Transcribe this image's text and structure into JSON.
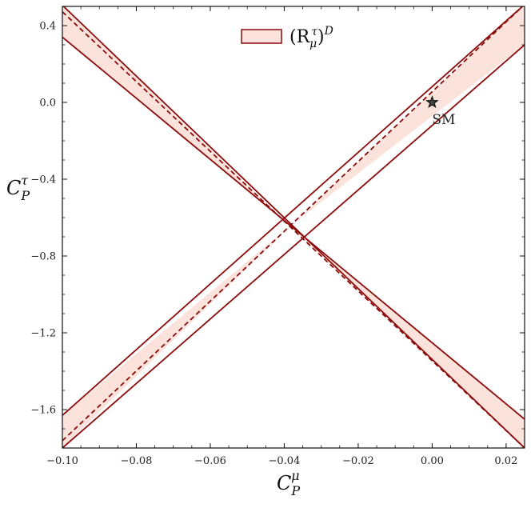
{
  "chart_data": {
    "type": "line",
    "title": "",
    "xlabel": {
      "base": "C",
      "sub": "P",
      "sup": "μ"
    },
    "ylabel": {
      "base": "C",
      "sub": "P",
      "sup": "τ"
    },
    "xlim": [
      -0.1,
      0.025
    ],
    "ylim": [
      -1.8,
      0.5
    ],
    "x_ticks": [
      -0.1,
      -0.08,
      -0.06,
      -0.04,
      -0.02,
      0.0,
      0.02
    ],
    "x_tick_labels": [
      "−0.10",
      "−0.08",
      "−0.06",
      "−0.04",
      "−0.02",
      "0.00",
      "0.02"
    ],
    "y_ticks": [
      0.4,
      0.0,
      -0.4,
      -0.8,
      -1.2,
      -1.6
    ],
    "y_tick_labels": [
      "0.4",
      "0.0",
      "−0.4",
      "−0.8",
      "−1.2",
      "−1.6"
    ],
    "grid": false,
    "legend": {
      "placement": "top-center",
      "entries": [
        {
          "label": "(R_μ^τ)^D",
          "base": "(R",
          "sub": "μ",
          "sup": "τ",
          "close": ")",
          "outer_sup": "D"
        }
      ]
    },
    "colors": {
      "band_fill": "#fbe3dc",
      "band_edge": "#8b0a0a",
      "marker": "#111111"
    },
    "center": {
      "x": -0.0385,
      "y": -0.645
    },
    "series": [
      {
        "role": "central-line",
        "style": "dashed",
        "points": [
          [
            -0.1,
            0.472
          ],
          [
            0.025,
            -1.8
          ]
        ]
      },
      {
        "role": "central-line",
        "style": "dashed",
        "points": [
          [
            -0.1,
            -1.762
          ],
          [
            0.025,
            0.51
          ]
        ]
      },
      {
        "role": "band-edge",
        "style": "solid",
        "points": [
          [
            -0.1,
            0.506
          ],
          [
            0.025,
            -1.8
          ]
        ]
      },
      {
        "role": "band-edge",
        "style": "solid",
        "points": [
          [
            -0.1,
            0.34
          ],
          [
            0.025,
            -1.65
          ]
        ]
      },
      {
        "role": "band-edge",
        "style": "solid",
        "points": [
          [
            -0.1,
            -1.63
          ],
          [
            0.025,
            0.51
          ]
        ]
      },
      {
        "role": "band-edge",
        "style": "solid",
        "points": [
          [
            -0.1,
            -1.8
          ],
          [
            0.025,
            0.3
          ]
        ]
      }
    ],
    "bands": [
      {
        "polygon": [
          [
            -0.1,
            0.506
          ],
          [
            -0.1,
            0.34
          ],
          [
            -0.0385,
            -0.645
          ]
        ]
      },
      {
        "polygon": [
          [
            0.025,
            -1.65
          ],
          [
            0.025,
            -1.8
          ],
          [
            -0.0385,
            -0.645
          ]
        ]
      },
      {
        "polygon": [
          [
            -0.1,
            -1.63
          ],
          [
            -0.1,
            -1.8
          ],
          [
            -0.0385,
            -0.645
          ]
        ]
      },
      {
        "polygon": [
          [
            0.025,
            0.51
          ],
          [
            0.025,
            0.3
          ],
          [
            -0.0385,
            -0.645
          ]
        ]
      }
    ],
    "annotations": [
      {
        "text": "SM",
        "x": 0.0,
        "y": 0.0,
        "marker": "star"
      }
    ]
  }
}
